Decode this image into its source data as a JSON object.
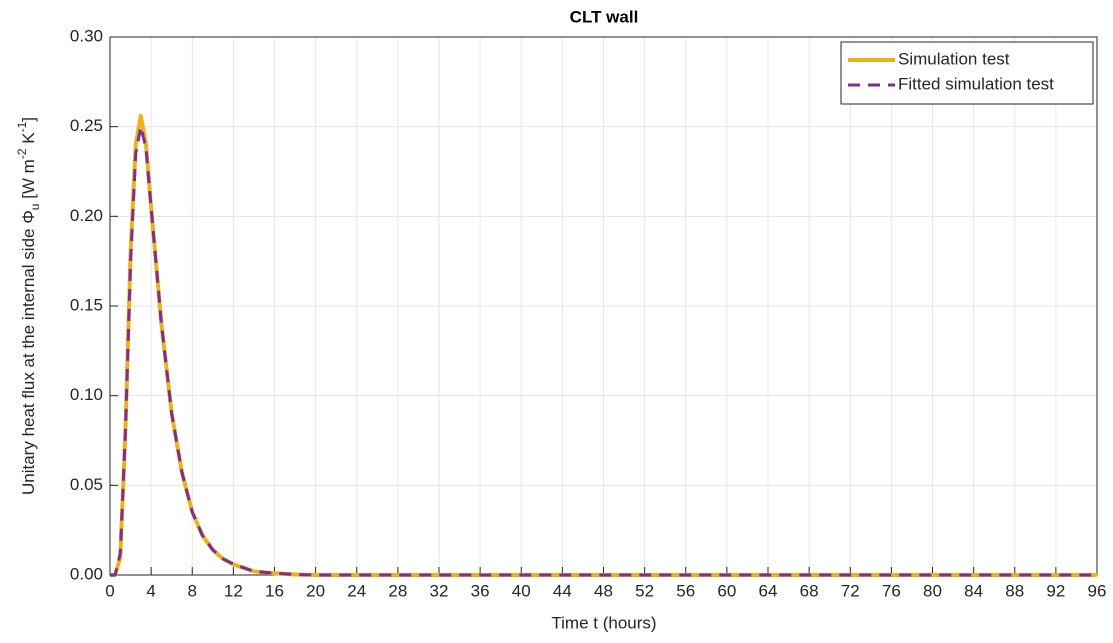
{
  "chart_data": {
    "type": "line",
    "title": "CLT wall",
    "xlabel": "Time t (hours)",
    "ylabel": [
      "Unitary heat flux at the internal side Φ",
      "u",
      " [W m",
      "-2",
      " K",
      "-1",
      "]"
    ],
    "x": [
      0,
      0.5,
      1,
      1.5,
      2,
      2.5,
      3,
      3.5,
      4,
      5,
      6,
      7,
      8,
      9,
      10,
      11,
      12,
      14,
      16,
      18,
      20,
      24,
      96
    ],
    "series": [
      {
        "name": "Simulation test",
        "color": "#EDB120",
        "dashed": false,
        "values": [
          0,
          0,
          0.01,
          0.08,
          0.18,
          0.24,
          0.256,
          0.24,
          0.205,
          0.14,
          0.09,
          0.057,
          0.035,
          0.022,
          0.014,
          0.009,
          0.006,
          0.002,
          0.001,
          0.0003,
          0,
          0,
          0
        ]
      },
      {
        "name": "Fitted simulation test",
        "color": "#7E2F8E",
        "dashed": true,
        "values": [
          0,
          0,
          0.012,
          0.08,
          0.175,
          0.235,
          0.25,
          0.238,
          0.205,
          0.14,
          0.09,
          0.057,
          0.035,
          0.022,
          0.014,
          0.009,
          0.006,
          0.002,
          0.001,
          0.0003,
          0,
          0,
          0
        ]
      }
    ],
    "xlim": [
      0,
      96
    ],
    "xticks": [
      0,
      4,
      8,
      12,
      16,
      20,
      24,
      28,
      32,
      36,
      40,
      44,
      48,
      52,
      56,
      60,
      64,
      68,
      72,
      76,
      80,
      84,
      88,
      92,
      96
    ],
    "ylim": [
      0,
      0.3
    ],
    "yticks": [
      {
        "value": 0,
        "label": "0.00"
      },
      {
        "value": 0.05,
        "label": "0.05"
      },
      {
        "value": 0.1,
        "label": "0.10"
      },
      {
        "value": 0.15,
        "label": "0.15"
      },
      {
        "value": 0.2,
        "label": "0.20"
      },
      {
        "value": 0.25,
        "label": "0.25"
      },
      {
        "value": 0.3,
        "label": "0.30"
      }
    ],
    "grid": true,
    "legend": "top-right"
  }
}
